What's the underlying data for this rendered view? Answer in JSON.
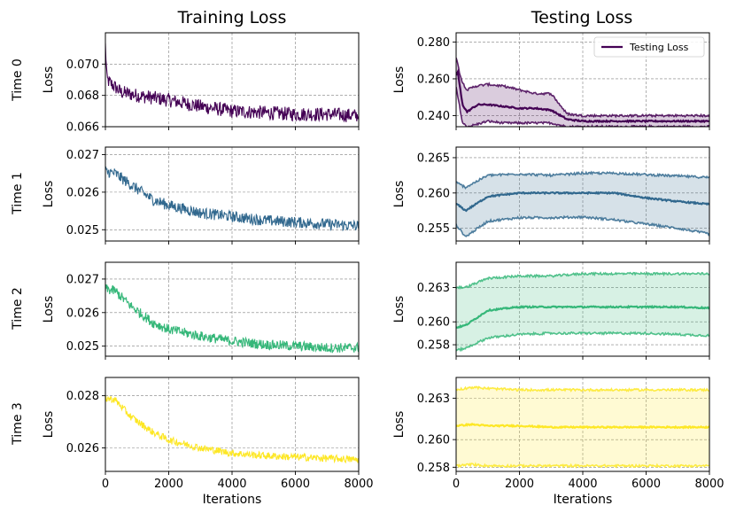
{
  "column_titles": [
    "Training Loss",
    "Testing Loss"
  ],
  "row_labels": [
    "Time 0",
    "Time 1",
    "Time 2",
    "Time 3"
  ],
  "legend": {
    "label": "Testing Loss",
    "placement": "top-right"
  },
  "chart_data": [
    {
      "type": "line",
      "panel": "train-0",
      "title": "Training Loss",
      "row_label": "Time 0",
      "xlabel": "",
      "ylabel": "Loss",
      "xlim": [
        0,
        8000
      ],
      "ylim": [
        0.066,
        0.072
      ],
      "xticks": [],
      "yticks": [
        0.066,
        0.068,
        0.07
      ],
      "ytick_labels": [
        "0.066",
        "0.068",
        "0.070"
      ],
      "color": "#440154",
      "grid": true,
      "series": [
        {
          "x": [
            0,
            50,
            150,
            500,
            1000,
            2000,
            3000,
            4000,
            5000,
            6000,
            7000,
            8000
          ],
          "y": [
            0.0712,
            0.069,
            0.0688,
            0.0682,
            0.068,
            0.0677,
            0.0673,
            0.067,
            0.0669,
            0.0668,
            0.0668,
            0.0667
          ],
          "noise": 0.00045
        }
      ]
    },
    {
      "type": "line",
      "panel": "test-0",
      "title": "Testing Loss",
      "row_label": "Time 0",
      "xlabel": "",
      "ylabel": "Loss",
      "xlim": [
        0,
        8000
      ],
      "ylim": [
        0.234,
        0.285
      ],
      "xticks": [],
      "yticks": [
        0.24,
        0.26,
        0.28
      ],
      "ytick_labels": [
        "0.240",
        "0.260",
        "0.280"
      ],
      "color": "#440154",
      "grid": true,
      "legend": true,
      "band": {
        "x": [
          0,
          100,
          200,
          350,
          600,
          1000,
          1500,
          2000,
          2500,
          3000,
          3500,
          4000,
          5000,
          6000,
          7000,
          8000
        ],
        "upper": [
          0.272,
          0.264,
          0.258,
          0.254,
          0.256,
          0.257,
          0.256,
          0.254,
          0.252,
          0.252,
          0.241,
          0.24,
          0.24,
          0.24,
          0.24,
          0.24
        ],
        "lower": [
          0.255,
          0.246,
          0.236,
          0.234,
          0.235,
          0.237,
          0.236,
          0.236,
          0.236,
          0.236,
          0.234,
          0.234,
          0.234,
          0.234,
          0.234,
          0.234
        ]
      },
      "series": [
        {
          "name": "Testing Loss",
          "x": [
            0,
            50,
            100,
            200,
            350,
            500,
            700,
            1000,
            1500,
            2000,
            2500,
            3000,
            3500,
            4000,
            5000,
            6000,
            7000,
            8000
          ],
          "y": [
            0.262,
            0.264,
            0.258,
            0.246,
            0.242,
            0.244,
            0.246,
            0.246,
            0.245,
            0.244,
            0.244,
            0.243,
            0.238,
            0.237,
            0.237,
            0.237,
            0.237,
            0.237
          ]
        }
      ]
    },
    {
      "type": "line",
      "panel": "train-1",
      "row_label": "Time 1",
      "xlabel": "",
      "ylabel": "Loss",
      "xlim": [
        0,
        8000
      ],
      "ylim": [
        0.0247,
        0.0272
      ],
      "xticks": [],
      "yticks": [
        0.025,
        0.026,
        0.027
      ],
      "ytick_labels": [
        "0.025",
        "0.026",
        "0.027"
      ],
      "color": "#31688e",
      "grid": true,
      "series": [
        {
          "x": [
            0,
            300,
            800,
            1500,
            2000,
            3000,
            4000,
            5000,
            6000,
            7000,
            8000
          ],
          "y": [
            0.02655,
            0.0265,
            0.0262,
            0.0258,
            0.02565,
            0.02545,
            0.02535,
            0.02525,
            0.0252,
            0.02515,
            0.0251
          ],
          "noise": 0.00015
        }
      ]
    },
    {
      "type": "line",
      "panel": "test-1",
      "row_label": "Time 1",
      "xlabel": "",
      "ylabel": "Loss",
      "xlim": [
        0,
        8000
      ],
      "ylim": [
        0.2532,
        0.2665
      ],
      "xticks": [],
      "yticks": [
        0.255,
        0.26,
        0.265
      ],
      "ytick_labels": [
        "0.255",
        "0.260",
        "0.265"
      ],
      "color": "#31688e",
      "grid": true,
      "band": {
        "x": [
          0,
          300,
          1000,
          2000,
          3000,
          4000,
          5000,
          6000,
          7000,
          8000
        ],
        "upper": [
          0.2615,
          0.2608,
          0.2625,
          0.2627,
          0.2625,
          0.2628,
          0.2628,
          0.2626,
          0.2624,
          0.2622
        ],
        "lower": [
          0.2555,
          0.2538,
          0.256,
          0.2565,
          0.2565,
          0.2566,
          0.2562,
          0.2556,
          0.255,
          0.2542
        ]
      },
      "series": [
        {
          "x": [
            0,
            300,
            1000,
            2000,
            3000,
            4000,
            5000,
            6000,
            7000,
            8000
          ],
          "y": [
            0.2585,
            0.2575,
            0.2595,
            0.26,
            0.26,
            0.26,
            0.26,
            0.2593,
            0.2588,
            0.2584
          ]
        }
      ]
    },
    {
      "type": "line",
      "panel": "train-2",
      "row_label": "Time 2",
      "xlabel": "",
      "ylabel": "Loss",
      "xlim": [
        0,
        8000
      ],
      "ylim": [
        0.0247,
        0.0275
      ],
      "xticks": [],
      "yticks": [
        0.025,
        0.026,
        0.027
      ],
      "ytick_labels": [
        "0.025",
        "0.026",
        "0.027"
      ],
      "color": "#35b779",
      "grid": true,
      "series": [
        {
          "x": [
            0,
            300,
            800,
            1500,
            2000,
            3000,
            4000,
            5000,
            6000,
            7000,
            8000
          ],
          "y": [
            0.0267,
            0.02665,
            0.0262,
            0.0257,
            0.0255,
            0.0253,
            0.02515,
            0.02505,
            0.025,
            0.02495,
            0.02495
          ],
          "noise": 0.00015
        }
      ]
    },
    {
      "type": "line",
      "panel": "test-2",
      "row_label": "Time 2",
      "xlabel": "",
      "ylabel": "Loss",
      "xlim": [
        0,
        8000
      ],
      "ylim": [
        0.257,
        0.2652
      ],
      "xticks": [],
      "yticks": [
        0.258,
        0.26,
        0.263
      ],
      "ytick_labels": [
        "0.258",
        "0.260",
        "0.263"
      ],
      "color": "#35b779",
      "grid": true,
      "band": {
        "x": [
          0,
          300,
          1000,
          2000,
          3000,
          4000,
          5000,
          6000,
          7000,
          8000
        ],
        "upper": [
          0.263,
          0.263,
          0.2638,
          0.264,
          0.264,
          0.2642,
          0.2642,
          0.2642,
          0.2642,
          0.2642
        ],
        "lower": [
          0.2575,
          0.2577,
          0.2586,
          0.2589,
          0.259,
          0.259,
          0.259,
          0.259,
          0.2589,
          0.2588
        ]
      },
      "series": [
        {
          "x": [
            0,
            300,
            1000,
            2000,
            3000,
            4000,
            5000,
            6000,
            7000,
            8000
          ],
          "y": [
            0.2595,
            0.2597,
            0.261,
            0.2613,
            0.2613,
            0.2613,
            0.2613,
            0.2613,
            0.2613,
            0.2612
          ]
        }
      ]
    },
    {
      "type": "line",
      "panel": "train-3",
      "row_label": "Time 3",
      "xlabel": "Iterations",
      "ylabel": "Loss",
      "xlim": [
        0,
        8000
      ],
      "ylim": [
        0.0251,
        0.0287
      ],
      "xticks": [
        0,
        2000,
        4000,
        6000,
        8000
      ],
      "yticks": [
        0.026,
        0.028
      ],
      "ytick_labels": [
        "0.026",
        "0.028"
      ],
      "color": "#fde725",
      "grid": true,
      "series": [
        {
          "x": [
            0,
            300,
            800,
            1500,
            2000,
            3000,
            4000,
            5000,
            6000,
            7000,
            8000
          ],
          "y": [
            0.0279,
            0.02785,
            0.0272,
            0.0266,
            0.0263,
            0.026,
            0.0258,
            0.0257,
            0.02565,
            0.0256,
            0.02555
          ],
          "noise": 0.00014
        }
      ]
    },
    {
      "type": "line",
      "panel": "test-3",
      "row_label": "Time 3",
      "xlabel": "Iterations",
      "ylabel": "Loss",
      "xlim": [
        0,
        8000
      ],
      "ylim": [
        0.2577,
        0.2645
      ],
      "xticks": [
        0,
        2000,
        4000,
        6000,
        8000
      ],
      "yticks": [
        0.258,
        0.26,
        0.263
      ],
      "ytick_labels": [
        "0.258",
        "0.260",
        "0.263"
      ],
      "color": "#fde725",
      "grid": true,
      "band": {
        "x": [
          0,
          500,
          1000,
          2000,
          3000,
          4000,
          5000,
          6000,
          7000,
          8000
        ],
        "upper": [
          0.2636,
          0.2638,
          0.2637,
          0.2636,
          0.2636,
          0.2636,
          0.2636,
          0.2636,
          0.2636,
          0.2636
        ],
        "lower": [
          0.2581,
          0.2582,
          0.2581,
          0.2581,
          0.2581,
          0.2581,
          0.2581,
          0.2581,
          0.2581,
          0.2581
        ]
      },
      "series": [
        {
          "x": [
            0,
            500,
            1000,
            2000,
            3000,
            4000,
            5000,
            6000,
            7000,
            8000
          ],
          "y": [
            0.261,
            0.2611,
            0.261,
            0.261,
            0.2609,
            0.2609,
            0.2609,
            0.2609,
            0.2609,
            0.2609
          ]
        }
      ]
    }
  ]
}
